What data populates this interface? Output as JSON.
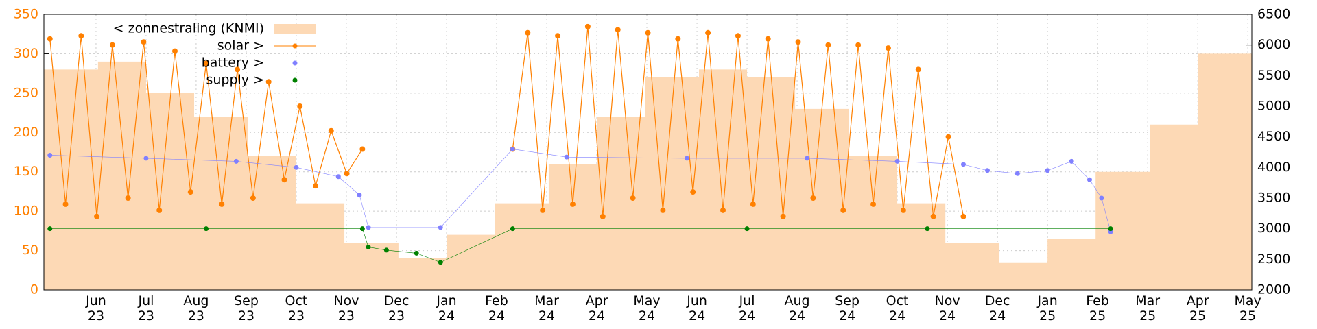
{
  "chart_data": {
    "type": "line",
    "xlim": [
      2023.33,
      2025.34
    ],
    "xticks": [
      {
        "value": 2023.4167,
        "label": "Jun 23"
      },
      {
        "value": 2023.5,
        "label": "Jul 23"
      },
      {
        "value": 2023.5833,
        "label": "Aug 23"
      },
      {
        "value": 2023.6667,
        "label": "Sep 23"
      },
      {
        "value": 2023.75,
        "label": "Oct 23"
      },
      {
        "value": 2023.8333,
        "label": "Nov 23"
      },
      {
        "value": 2023.9167,
        "label": "Dec 23"
      },
      {
        "value": 2024.0,
        "label": "Jan 24"
      },
      {
        "value": 2024.0833,
        "label": "Feb 24"
      },
      {
        "value": 2024.1667,
        "label": "Mar 24"
      },
      {
        "value": 2024.25,
        "label": "Apr 24"
      },
      {
        "value": 2024.3333,
        "label": "May 24"
      },
      {
        "value": 2024.4167,
        "label": "Jun 24"
      },
      {
        "value": 2024.5,
        "label": "Jul 24"
      },
      {
        "value": 2024.5833,
        "label": "Aug 24"
      },
      {
        "value": 2024.6667,
        "label": "Sep 24"
      },
      {
        "value": 2024.75,
        "label": "Oct 24"
      },
      {
        "value": 2024.8333,
        "label": "Nov 24"
      },
      {
        "value": 2024.9167,
        "label": "Dec 24"
      },
      {
        "value": 2025.0,
        "label": "Jan 25"
      },
      {
        "value": 2025.0833,
        "label": "Feb 25"
      },
      {
        "value": 2025.1667,
        "label": "Mar 25"
      },
      {
        "value": 2025.25,
        "label": "Apr 25"
      },
      {
        "value": 2025.3333,
        "label": "May 25"
      }
    ],
    "ylim": [
      0,
      350
    ],
    "yticks": [
      0,
      50,
      100,
      150,
      200,
      250,
      300,
      350
    ],
    "y_axis_color": "#ff8000",
    "y2lim": [
      2000,
      6500
    ],
    "y2ticks": [
      2000,
      2500,
      3000,
      3500,
      4000,
      4500,
      5000,
      5500,
      6000,
      6500
    ],
    "grid": true,
    "legend": "upper left",
    "series": [
      {
        "name": "< zonnestraling (KNMI)",
        "color": "#fdd9b5",
        "style": "area",
        "x": [
          2023.33,
          2023.42,
          2023.5,
          2023.58,
          2023.67,
          2023.75,
          2023.83,
          2023.92,
          2024.0,
          2024.08,
          2024.17,
          2024.25,
          2024.33,
          2024.42,
          2024.5,
          2024.58,
          2024.67,
          2024.75,
          2024.83,
          2024.92,
          2025.0,
          2025.08,
          2025.17,
          2025.25
        ],
        "values": [
          280,
          290,
          250,
          220,
          170,
          110,
          60,
          40,
          70,
          110,
          160,
          220,
          270,
          280,
          270,
          230,
          170,
          110,
          60,
          35,
          65,
          150,
          210,
          300
        ]
      },
      {
        "name": "solar >",
        "color": "#ff8000",
        "style": "linespoints",
        "axis": "y2",
        "x": [
          2023.34,
          2023.366,
          2023.392,
          2023.418,
          2023.444,
          2023.47,
          2023.496,
          2023.522,
          2023.548,
          2023.574,
          2023.6,
          2023.626,
          2023.652,
          2023.678,
          2023.704,
          2023.73,
          2023.756,
          2023.782,
          2023.808,
          2023.834,
          2023.86,
          2023.98,
          2024.11,
          2024.135,
          2024.16,
          2024.185,
          2024.21,
          2024.235,
          2024.26,
          2024.285,
          2024.31,
          2024.335,
          2024.36,
          2024.385,
          2024.41,
          2024.435,
          2024.46,
          2024.485,
          2024.51,
          2024.535,
          2024.56,
          2024.585,
          2024.61,
          2024.635,
          2024.66,
          2024.685,
          2024.71,
          2024.735,
          2024.76,
          2024.785,
          2024.81,
          2024.835,
          2024.86
        ],
        "values": [
          6100,
          3400,
          6150,
          3200,
          6000,
          3500,
          6050,
          3300,
          5900,
          3600,
          5700,
          3400,
          5600,
          3500,
          5400,
          3800,
          5000,
          3700,
          4600,
          3900,
          4300,
          null,
          4300,
          6200,
          3300,
          6150,
          3400,
          6300,
          3200,
          6250,
          3500,
          6200,
          3300,
          6100,
          3600,
          6200,
          3300,
          6150,
          3400,
          6100,
          3200,
          6050,
          3500,
          6000,
          3300,
          6000,
          3400,
          5950,
          3300,
          5600,
          3200,
          4500,
          3200
        ]
      },
      {
        "name": "battery >",
        "color": "#8080ff",
        "style": "points",
        "axis": "y2",
        "x": [
          2023.34,
          2023.5,
          2023.65,
          2023.75,
          2023.82,
          2023.855,
          2023.87,
          2023.99,
          2024.11,
          2024.2,
          2024.4,
          2024.6,
          2024.75,
          2024.86,
          2024.9,
          2024.95,
          2025.0,
          2025.04,
          2025.07,
          2025.09,
          2025.105
        ],
        "values": [
          4200,
          4150,
          4100,
          4000,
          3850,
          3550,
          3020,
          3020,
          4300,
          4170,
          4150,
          4150,
          4100,
          4050,
          3950,
          3900,
          3950,
          4100,
          3800,
          3500,
          2950
        ]
      },
      {
        "name": "supply >",
        "color": "#008000",
        "style": "points",
        "axis": "y2",
        "x": [
          2023.34,
          2023.6,
          2023.86,
          2023.87,
          2023.9,
          2023.95,
          2023.99,
          2024.11,
          2024.5,
          2024.8,
          2025.105
        ],
        "values": [
          3000,
          3000,
          3000,
          2700,
          2650,
          2600,
          2450,
          3000,
          3000,
          3000,
          3000
        ]
      }
    ]
  }
}
